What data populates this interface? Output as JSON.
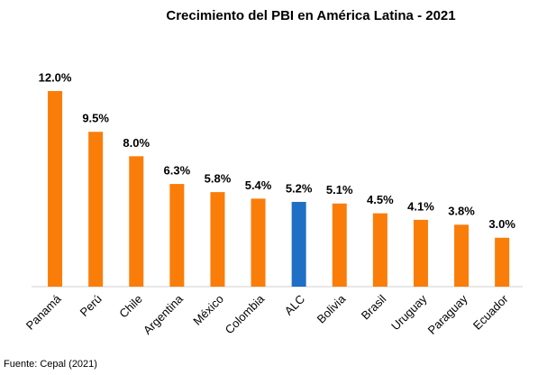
{
  "chart_data": {
    "type": "bar",
    "title": "Crecimiento del PBI en América Latina - 2021",
    "categories": [
      "Panamá",
      "Perú",
      "Chile",
      "Argentina",
      "México",
      "Colombia",
      "ALC",
      "Bolivia",
      "Brasil",
      "Uruguay",
      "Paraguay",
      "Ecuador"
    ],
    "values": [
      12.0,
      9.5,
      8.0,
      6.3,
      5.8,
      5.4,
      5.2,
      5.1,
      4.5,
      4.1,
      3.8,
      3.0
    ],
    "value_labels": [
      "12.0%",
      "9.5%",
      "8.0%",
      "6.3%",
      "5.8%",
      "5.4%",
      "5.2%",
      "5.1%",
      "4.5%",
      "4.1%",
      "3.8%",
      "3.0%"
    ],
    "colors": [
      "#fa7d09",
      "#fa7d09",
      "#fa7d09",
      "#fa7d09",
      "#fa7d09",
      "#fa7d09",
      "#1f6fc5",
      "#fa7d09",
      "#fa7d09",
      "#fa7d09",
      "#fa7d09",
      "#fa7d09"
    ],
    "source": "Fuente: Cepal (2021)"
  }
}
